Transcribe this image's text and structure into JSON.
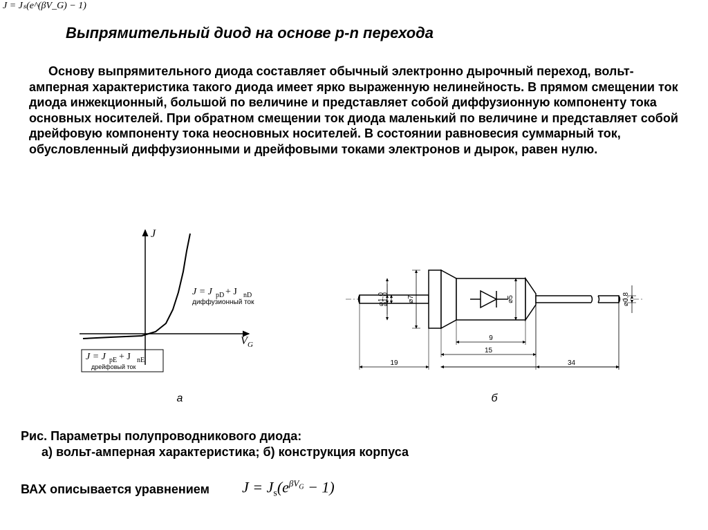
{
  "top_formula_text": "J = Jₛ(e^(βV_G) − 1)",
  "title": "Выпрямительный диод на основе p-n перехода",
  "body_text": "Основу выпрямительного диода составляет обычный электронно дырочный переход, вольт-амперная характеристика такого диода имеет ярко выраженную нелинейность. В прямом смещении ток диода инжекционный, большой по величине и представляет собой диффузионную компоненту тока основных носителей. При обратном смещении ток диода маленький по величине и представляет собой дрейфовую компоненту тока неосновных носителей. В состоянии равновесия суммарный ток, обусловленный диффузионными и дрейфовыми токами электронов и дырок, равен нулю.",
  "chart_a": {
    "type": "line-iv-curve",
    "x_axis_label": "V_G",
    "y_axis_label": "J",
    "forward_label": "J = J_pD + J_nD",
    "forward_sub": "диффузионный ток",
    "reverse_label": "J = J_pE + J_nE",
    "reverse_sub": "дрейфовый ток",
    "line_color": "#000000",
    "line_width": 2,
    "background_color": "#ffffff",
    "sublabel": "а",
    "curve_points": [
      [
        10,
        162
      ],
      [
        50,
        160
      ],
      [
        95,
        158
      ],
      [
        115,
        152
      ],
      [
        130,
        140
      ],
      [
        140,
        120
      ],
      [
        148,
        95
      ],
      [
        155,
        65
      ],
      [
        160,
        35
      ],
      [
        165,
        10
      ]
    ],
    "axis_origin": [
      100,
      155
    ],
    "x_axis_end": [
      250,
      155
    ],
    "y_axis_end": [
      100,
      5
    ],
    "x_axis_start": [
      5,
      155
    ]
  },
  "chart_b": {
    "type": "engineering-drawing",
    "sublabel": "б",
    "line_color": "#000000",
    "line_width": 1.5,
    "dims": {
      "d_lead_left": "⌀1,0",
      "d_collar": "⌀7",
      "d_body": "⌀5",
      "d_lead_right": "⌀0,8",
      "len_body_inner": "9",
      "len_body_outer": "15",
      "len_lead_left": "19",
      "len_total_right": "34"
    },
    "dim_fontsize": 10
  },
  "caption_line1": "Рис.  Параметры полупроводникового диода:",
  "caption_line2": "      а) вольт-амперная характеристика; б) конструкция корпуса",
  "eq_label": "ВАХ  описывается уравнением",
  "eq_prefix": "J = J",
  "eq_sub_s": "s",
  "eq_open": "(e",
  "eq_exp": "βV",
  "eq_exp_sub": "G",
  "eq_close": " − 1)",
  "colors": {
    "text": "#000000",
    "background": "#ffffff"
  },
  "fontsizes": {
    "title": 22,
    "body": 18,
    "formula": 22,
    "dim": 10
  }
}
